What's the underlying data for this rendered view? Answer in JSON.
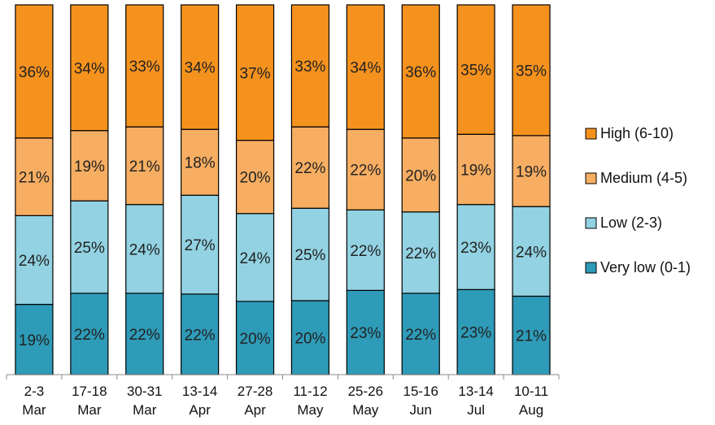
{
  "chart_data": {
    "type": "bar",
    "stacked": true,
    "normalized": true,
    "categories": [
      [
        "2-3",
        "Mar"
      ],
      [
        "17-18",
        "Mar"
      ],
      [
        "30-31",
        "Mar"
      ],
      [
        "13-14",
        "Apr"
      ],
      [
        "27-28",
        "Apr"
      ],
      [
        "11-12",
        "May"
      ],
      [
        "25-26",
        "May"
      ],
      [
        "15-16",
        "Jun"
      ],
      [
        "13-14",
        "Jul"
      ],
      [
        "10-11",
        "Aug"
      ]
    ],
    "series": [
      {
        "name": "Very low (0-1)",
        "color": "#2e9bb8",
        "values": [
          19,
          22,
          22,
          22,
          20,
          20,
          23,
          22,
          23,
          21
        ]
      },
      {
        "name": "Low (2-3)",
        "color": "#92d2e2",
        "values": [
          24,
          25,
          24,
          27,
          24,
          25,
          22,
          22,
          23,
          24
        ]
      },
      {
        "name": "Medium (4-5)",
        "color": "#f7ae62",
        "values": [
          21,
          19,
          21,
          18,
          20,
          22,
          22,
          20,
          19,
          19
        ]
      },
      {
        "name": "High (6-10)",
        "color": "#f5921e",
        "values": [
          36,
          34,
          33,
          34,
          37,
          33,
          34,
          36,
          35,
          35
        ]
      }
    ],
    "value_suffix": "%",
    "legend_order": [
      "High (6-10)",
      "Medium (4-5)",
      "Low (2-3)",
      "Very low (0-1)"
    ],
    "legend_position": "right",
    "grid": false
  }
}
